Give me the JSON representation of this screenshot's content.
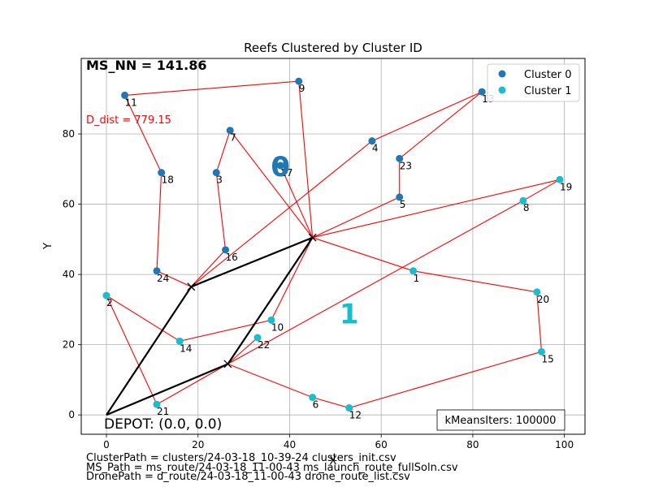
{
  "chart_data": {
    "type": "scatter",
    "title": "Reefs Clustered by Cluster ID",
    "xlabel": "X",
    "ylabel": "Y",
    "xlim": [
      -5.5,
      104.5
    ],
    "ylim": [
      -5.5,
      101.5
    ],
    "x_ticks": [
      0,
      20,
      40,
      60,
      80,
      100
    ],
    "y_ticks": [
      0,
      20,
      40,
      60,
      80
    ],
    "grid": true,
    "legend_position": "top-right",
    "series": [
      {
        "name": "Cluster 0",
        "color": "#1f77b4"
      },
      {
        "name": "Cluster 1",
        "color": "#17becf"
      }
    ],
    "points": [
      {
        "id": "1",
        "x": 67,
        "y": 41,
        "cluster": 1
      },
      {
        "id": "2",
        "x": 0,
        "y": 34,
        "cluster": 1
      },
      {
        "id": "3",
        "x": 24,
        "y": 69,
        "cluster": 0
      },
      {
        "id": "4",
        "x": 58,
        "y": 78,
        "cluster": 0
      },
      {
        "id": "5",
        "x": 64,
        "y": 62,
        "cluster": 0
      },
      {
        "id": "6",
        "x": 45,
        "y": 5,
        "cluster": 1
      },
      {
        "id": "7",
        "x": 27,
        "y": 81,
        "cluster": 0
      },
      {
        "id": "8",
        "x": 91,
        "y": 61,
        "cluster": 1
      },
      {
        "id": "9",
        "x": 42,
        "y": 95,
        "cluster": 0
      },
      {
        "id": "10",
        "x": 36,
        "y": 27,
        "cluster": 1
      },
      {
        "id": "11",
        "x": 4,
        "y": 91,
        "cluster": 0
      },
      {
        "id": "12",
        "x": 53,
        "y": 2,
        "cluster": 1
      },
      {
        "id": "13",
        "x": 82,
        "y": 92,
        "cluster": 0
      },
      {
        "id": "14",
        "x": 16,
        "y": 21,
        "cluster": 1
      },
      {
        "id": "15",
        "x": 95,
        "y": 18,
        "cluster": 1
      },
      {
        "id": "16",
        "x": 26,
        "y": 47,
        "cluster": 0
      },
      {
        "id": "17",
        "x": 38,
        "y": 71,
        "cluster": 0
      },
      {
        "id": "18",
        "x": 12,
        "y": 69,
        "cluster": 0
      },
      {
        "id": "19",
        "x": 99,
        "y": 67,
        "cluster": 1
      },
      {
        "id": "20",
        "x": 94,
        "y": 35,
        "cluster": 1
      },
      {
        "id": "21",
        "x": 11,
        "y": 3,
        "cluster": 1
      },
      {
        "id": "22",
        "x": 33,
        "y": 22,
        "cluster": 1
      },
      {
        "id": "23",
        "x": 64,
        "y": 73,
        "cluster": 0
      },
      {
        "id": "24",
        "x": 11,
        "y": 41,
        "cluster": 0
      }
    ],
    "ms_route": [
      {
        "x": 0,
        "y": 0
      },
      {
        "x": 18.5,
        "y": 36.5
      },
      {
        "x": 45,
        "y": 50.5
      },
      {
        "x": 26.5,
        "y": 14.5
      },
      {
        "x": 0,
        "y": 0
      }
    ],
    "drone_routes": [
      [
        "11",
        "9",
        "x2",
        "7",
        "3",
        "16",
        "x1",
        "24",
        "18",
        "11"
      ],
      [
        "13",
        "4",
        "x1"
      ],
      [
        "13",
        "23",
        "5",
        "x2",
        "19",
        "8",
        "x3"
      ],
      [
        "x2",
        "17"
      ],
      [
        "x2",
        "1",
        "20",
        "15",
        "12",
        "6",
        "x3"
      ],
      [
        "2",
        "14",
        "10",
        "x2"
      ],
      [
        "2",
        "21",
        "x3"
      ],
      [
        "22",
        "x3"
      ]
    ],
    "cluster_centers": [
      {
        "label": "0",
        "x": 38,
        "y": 71,
        "color": "#1f77b4"
      },
      {
        "label": "1",
        "x": 53,
        "y": 29,
        "color": "#17becf"
      }
    ],
    "annotations": {
      "ms_nn": "MS_NN = 141.86",
      "d_dist": "D_dist = 779.15",
      "depot": "DEPOT: (0.0, 0.0)",
      "kmeans": "kMeansIters: 100000"
    },
    "footer_lines": [
      "ClusterPath = clusters/24-03-18_10-39-24 clusters_init.csv",
      "MS_Path = ms_route/24-03-18_11-00-43 ms_launch_route_fullSoln.csv",
      "DronePath = d_route/24-03-18_11-00-43 drone_route_list.csv"
    ],
    "colors": {
      "route": "#ff0000",
      "ms_route": "#000000",
      "d_dist": "#ff0000"
    }
  }
}
